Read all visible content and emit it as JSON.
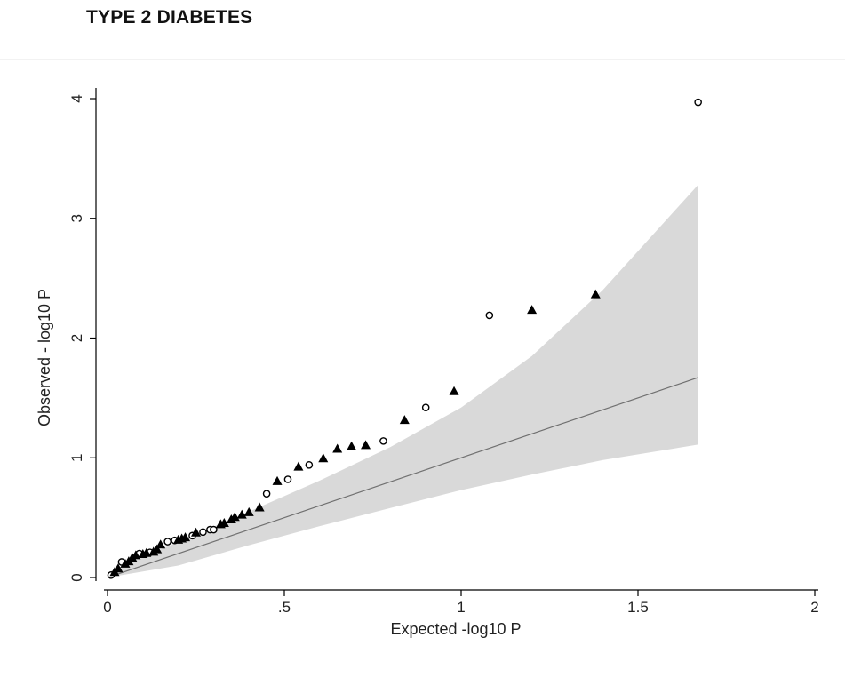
{
  "page": {
    "title": "TYPE 2 DIABETES"
  },
  "chart_data": {
    "type": "scatter",
    "title": "TYPE 2 DIABETES",
    "xlabel": "Expected -log10 P",
    "ylabel": "Observed - log10 P",
    "xlim": [
      0,
      2
    ],
    "ylim": [
      0,
      4
    ],
    "xticks": [
      0,
      0.5,
      1,
      1.5,
      2
    ],
    "xtick_labels": [
      "0",
      ".5",
      "1",
      "1.5",
      "2"
    ],
    "yticks": [
      0,
      1,
      2,
      3,
      4
    ],
    "ytick_labels": [
      "0",
      "1",
      "2",
      "3",
      "4"
    ],
    "grid": false,
    "colors": {
      "band": "#d9d9d9",
      "line": "#707070",
      "marker": "#000000",
      "axis": "#000000"
    },
    "confidence_band": {
      "x": [
        0.0,
        0.2,
        0.4,
        0.6,
        0.8,
        1.0,
        1.2,
        1.4,
        1.67
      ],
      "upper": [
        0.04,
        0.3,
        0.55,
        0.81,
        1.09,
        1.42,
        1.85,
        2.4,
        3.28
      ],
      "lower": [
        0.0,
        0.1,
        0.27,
        0.43,
        0.58,
        0.73,
        0.86,
        0.98,
        1.11
      ]
    },
    "reference_line": {
      "x": [
        0.0,
        1.67
      ],
      "y": [
        0.0,
        1.67
      ]
    },
    "series": [
      {
        "marker": "circle-open",
        "x": [
          0.01,
          0.04,
          0.09,
          0.12,
          0.17,
          0.19,
          0.24,
          0.27,
          0.29,
          0.3,
          0.45,
          0.51,
          0.57,
          0.78,
          0.9,
          1.08,
          1.67
        ],
        "y": [
          0.02,
          0.13,
          0.2,
          0.21,
          0.3,
          0.31,
          0.35,
          0.38,
          0.4,
          0.4,
          0.7,
          0.82,
          0.94,
          1.14,
          1.42,
          2.19,
          3.97
        ]
      },
      {
        "marker": "triangle-filled",
        "x": [
          0.02,
          0.03,
          0.05,
          0.06,
          0.07,
          0.08,
          0.1,
          0.11,
          0.13,
          0.14,
          0.15,
          0.2,
          0.21,
          0.22,
          0.25,
          0.32,
          0.33,
          0.35,
          0.36,
          0.38,
          0.4,
          0.43,
          0.48,
          0.54,
          0.61,
          0.65,
          0.69,
          0.73,
          0.84,
          0.98,
          1.2,
          1.38
        ],
        "y": [
          0.05,
          0.08,
          0.12,
          0.14,
          0.17,
          0.19,
          0.2,
          0.21,
          0.22,
          0.24,
          0.28,
          0.32,
          0.33,
          0.34,
          0.38,
          0.45,
          0.46,
          0.49,
          0.51,
          0.53,
          0.55,
          0.59,
          0.81,
          0.93,
          1.0,
          1.08,
          1.1,
          1.11,
          1.32,
          1.56,
          2.24,
          2.37
        ]
      }
    ]
  }
}
